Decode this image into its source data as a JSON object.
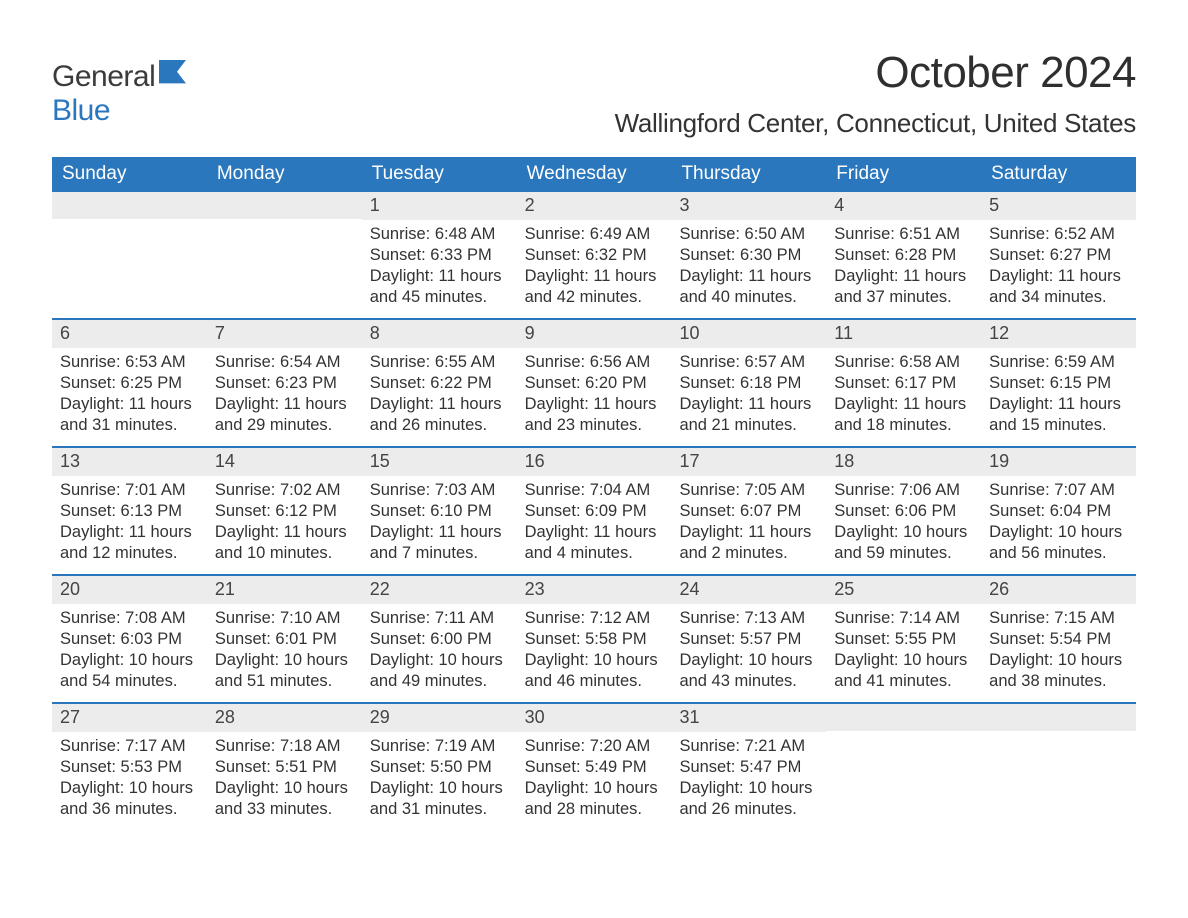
{
  "brand": {
    "text_top": "General",
    "text_bottom": "Blue",
    "icon_color": "#2a77bd"
  },
  "title": "October 2024",
  "location": "Wallingford Center, Connecticut, United States",
  "colors": {
    "header_bg": "#2a77bd",
    "header_text": "#ffffff",
    "daynum_bg": "#ececec",
    "week_border": "#2a77bd",
    "body_text": "#333333",
    "page_bg": "#ffffff"
  },
  "typography": {
    "title_fontsize_pt": 33,
    "location_fontsize_pt": 20,
    "dow_fontsize_pt": 14,
    "daynum_fontsize_pt": 14,
    "body_fontsize_pt": 12
  },
  "layout": {
    "columns": 7,
    "rows_visible": 5,
    "first_day_column_index": 2
  },
  "days_of_week": [
    "Sunday",
    "Monday",
    "Tuesday",
    "Wednesday",
    "Thursday",
    "Friday",
    "Saturday"
  ],
  "labels": {
    "sunrise_prefix": "Sunrise: ",
    "sunset_prefix": "Sunset: ",
    "daylight_prefix": "Daylight: "
  },
  "days": [
    {
      "n": "1",
      "sunrise": "6:48 AM",
      "sunset": "6:33 PM",
      "daylight": "11 hours and 45 minutes."
    },
    {
      "n": "2",
      "sunrise": "6:49 AM",
      "sunset": "6:32 PM",
      "daylight": "11 hours and 42 minutes."
    },
    {
      "n": "3",
      "sunrise": "6:50 AM",
      "sunset": "6:30 PM",
      "daylight": "11 hours and 40 minutes."
    },
    {
      "n": "4",
      "sunrise": "6:51 AM",
      "sunset": "6:28 PM",
      "daylight": "11 hours and 37 minutes."
    },
    {
      "n": "5",
      "sunrise": "6:52 AM",
      "sunset": "6:27 PM",
      "daylight": "11 hours and 34 minutes."
    },
    {
      "n": "6",
      "sunrise": "6:53 AM",
      "sunset": "6:25 PM",
      "daylight": "11 hours and 31 minutes."
    },
    {
      "n": "7",
      "sunrise": "6:54 AM",
      "sunset": "6:23 PM",
      "daylight": "11 hours and 29 minutes."
    },
    {
      "n": "8",
      "sunrise": "6:55 AM",
      "sunset": "6:22 PM",
      "daylight": "11 hours and 26 minutes."
    },
    {
      "n": "9",
      "sunrise": "6:56 AM",
      "sunset": "6:20 PM",
      "daylight": "11 hours and 23 minutes."
    },
    {
      "n": "10",
      "sunrise": "6:57 AM",
      "sunset": "6:18 PM",
      "daylight": "11 hours and 21 minutes."
    },
    {
      "n": "11",
      "sunrise": "6:58 AM",
      "sunset": "6:17 PM",
      "daylight": "11 hours and 18 minutes."
    },
    {
      "n": "12",
      "sunrise": "6:59 AM",
      "sunset": "6:15 PM",
      "daylight": "11 hours and 15 minutes."
    },
    {
      "n": "13",
      "sunrise": "7:01 AM",
      "sunset": "6:13 PM",
      "daylight": "11 hours and 12 minutes."
    },
    {
      "n": "14",
      "sunrise": "7:02 AM",
      "sunset": "6:12 PM",
      "daylight": "11 hours and 10 minutes."
    },
    {
      "n": "15",
      "sunrise": "7:03 AM",
      "sunset": "6:10 PM",
      "daylight": "11 hours and 7 minutes."
    },
    {
      "n": "16",
      "sunrise": "7:04 AM",
      "sunset": "6:09 PM",
      "daylight": "11 hours and 4 minutes."
    },
    {
      "n": "17",
      "sunrise": "7:05 AM",
      "sunset": "6:07 PM",
      "daylight": "11 hours and 2 minutes."
    },
    {
      "n": "18",
      "sunrise": "7:06 AM",
      "sunset": "6:06 PM",
      "daylight": "10 hours and 59 minutes."
    },
    {
      "n": "19",
      "sunrise": "7:07 AM",
      "sunset": "6:04 PM",
      "daylight": "10 hours and 56 minutes."
    },
    {
      "n": "20",
      "sunrise": "7:08 AM",
      "sunset": "6:03 PM",
      "daylight": "10 hours and 54 minutes."
    },
    {
      "n": "21",
      "sunrise": "7:10 AM",
      "sunset": "6:01 PM",
      "daylight": "10 hours and 51 minutes."
    },
    {
      "n": "22",
      "sunrise": "7:11 AM",
      "sunset": "6:00 PM",
      "daylight": "10 hours and 49 minutes."
    },
    {
      "n": "23",
      "sunrise": "7:12 AM",
      "sunset": "5:58 PM",
      "daylight": "10 hours and 46 minutes."
    },
    {
      "n": "24",
      "sunrise": "7:13 AM",
      "sunset": "5:57 PM",
      "daylight": "10 hours and 43 minutes."
    },
    {
      "n": "25",
      "sunrise": "7:14 AM",
      "sunset": "5:55 PM",
      "daylight": "10 hours and 41 minutes."
    },
    {
      "n": "26",
      "sunrise": "7:15 AM",
      "sunset": "5:54 PM",
      "daylight": "10 hours and 38 minutes."
    },
    {
      "n": "27",
      "sunrise": "7:17 AM",
      "sunset": "5:53 PM",
      "daylight": "10 hours and 36 minutes."
    },
    {
      "n": "28",
      "sunrise": "7:18 AM",
      "sunset": "5:51 PM",
      "daylight": "10 hours and 33 minutes."
    },
    {
      "n": "29",
      "sunrise": "7:19 AM",
      "sunset": "5:50 PM",
      "daylight": "10 hours and 31 minutes."
    },
    {
      "n": "30",
      "sunrise": "7:20 AM",
      "sunset": "5:49 PM",
      "daylight": "10 hours and 28 minutes."
    },
    {
      "n": "31",
      "sunrise": "7:21 AM",
      "sunset": "5:47 PM",
      "daylight": "10 hours and 26 minutes."
    }
  ]
}
